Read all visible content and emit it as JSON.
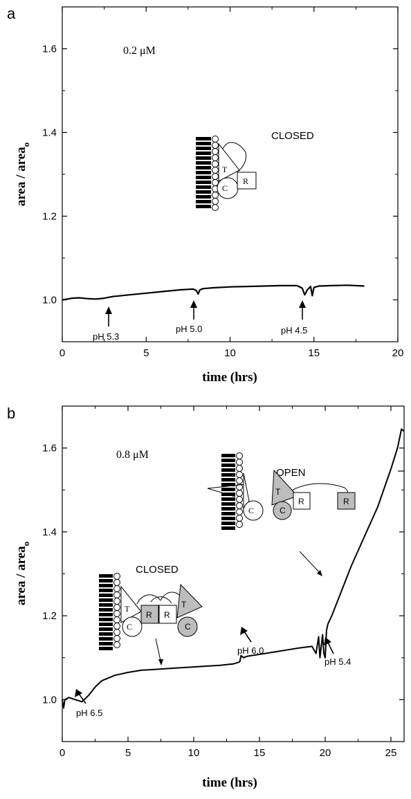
{
  "chart_data": [
    {
      "type": "line",
      "panel_label": "a",
      "xlabel": "time (hrs)",
      "ylabel": "area / area",
      "ylabel_subscript": "o",
      "xlim": [
        0,
        20
      ],
      "ylim": [
        0.9,
        1.7
      ],
      "xticks": [
        0,
        5,
        10,
        15,
        20
      ],
      "yticks": [
        1.0,
        1.2,
        1.4,
        1.6
      ],
      "concentration": "0.2 μM",
      "state_label": "CLOSED",
      "series": [
        {
          "x": [
            0,
            0.3,
            0.6,
            1.0,
            1.5,
            2.0,
            2.5,
            3.0,
            4.0,
            5.0,
            6.0,
            7.0,
            7.8,
            8.0,
            8.1,
            8.2,
            8.4,
            9.0,
            10.0,
            11.0,
            12.0,
            13.0,
            14.0,
            14.3,
            14.45,
            14.6,
            14.8,
            14.9,
            15.0,
            15.3,
            16.0,
            17.0,
            18.0
          ],
          "y": [
            1.0,
            1.002,
            1.004,
            1.005,
            1.003,
            1.002,
            1.004,
            1.008,
            1.012,
            1.016,
            1.02,
            1.024,
            1.026,
            1.022,
            1.014,
            1.024,
            1.027,
            1.029,
            1.031,
            1.032,
            1.033,
            1.034,
            1.034,
            1.028,
            1.012,
            1.024,
            1.032,
            1.01,
            1.03,
            1.033,
            1.034,
            1.035,
            1.033
          ]
        }
      ],
      "annotations": [
        {
          "text": "pH 5.3",
          "x": 2.8
        },
        {
          "text": "pH 5.0",
          "x": 8.0
        },
        {
          "text": "pH 4.5",
          "x": 14.5
        }
      ],
      "diagram_labels": [
        "T",
        "C",
        "R"
      ]
    },
    {
      "type": "line",
      "panel_label": "b",
      "xlabel": "time (hrs)",
      "ylabel": "area / area",
      "ylabel_subscript": "o",
      "xlim": [
        0,
        26
      ],
      "ylim": [
        0.9,
        1.7
      ],
      "xticks": [
        0,
        5,
        10,
        15,
        20,
        25
      ],
      "yticks": [
        1.0,
        1.2,
        1.4,
        1.6
      ],
      "concentration": "0.8 μM",
      "state_labels": [
        "OPEN",
        "CLOSED"
      ],
      "series": [
        {
          "x": [
            0,
            0.1,
            0.2,
            0.5,
            1.0,
            1.5,
            2.0,
            2.5,
            3.0,
            4.0,
            5.0,
            6.0,
            7.0,
            8.0,
            9.0,
            10.0,
            11.0,
            12.0,
            13.0,
            13.5,
            13.6,
            13.8,
            14.0,
            15.0,
            16.0,
            17.0,
            18.0,
            19.0,
            19.3,
            19.5,
            19.6,
            19.8,
            19.9,
            20.0,
            20.1,
            20.2,
            20.5,
            21.0,
            22.0,
            23.0,
            24.0,
            25.0,
            25.5,
            25.8,
            26.0
          ],
          "y": [
            1.0,
            0.98,
            1.0,
            1.005,
            1.0,
            0.995,
            1.01,
            1.03,
            1.045,
            1.058,
            1.065,
            1.07,
            1.072,
            1.074,
            1.076,
            1.078,
            1.08,
            1.082,
            1.085,
            1.09,
            1.105,
            1.1,
            1.103,
            1.108,
            1.113,
            1.118,
            1.123,
            1.127,
            1.11,
            1.15,
            1.1,
            1.155,
            1.11,
            1.1,
            1.165,
            1.18,
            1.2,
            1.24,
            1.32,
            1.39,
            1.46,
            1.55,
            1.6,
            1.645,
            1.64
          ]
        }
      ],
      "annotations": [
        {
          "text": "pH 6.5",
          "x": 1.2
        },
        {
          "text": "pH 6.0",
          "x": 13.7
        },
        {
          "text": "pH 5.4",
          "x": 20.0
        }
      ],
      "diagram_labels": [
        "T",
        "C",
        "R",
        "R",
        "T",
        "C",
        "T",
        "C",
        "R",
        "R"
      ]
    }
  ]
}
